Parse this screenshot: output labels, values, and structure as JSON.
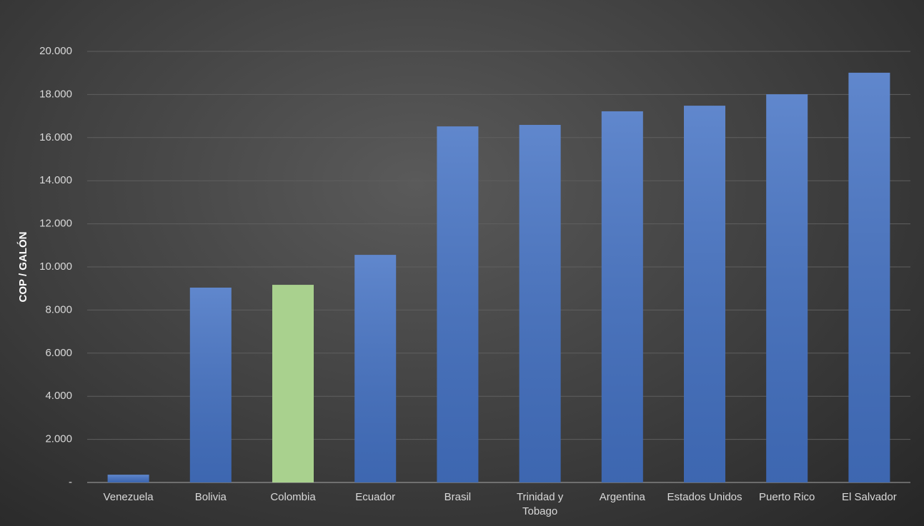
{
  "chart_data": {
    "type": "bar",
    "y_label": "COP / GALÓN",
    "categories": [
      "Venezuela",
      "Bolivia",
      "Colombia",
      "Ecuador",
      "Brasil",
      "Trinidad y Tobago",
      "Argentina",
      "Estados Unidos",
      "Puerto Rico",
      "El Salvador"
    ],
    "values": [
      360,
      9040,
      9170,
      10560,
      16520,
      16590,
      17220,
      17480,
      18010,
      19010
    ],
    "colors": [
      "#4472c4",
      "#4472c4",
      "#a9d18e",
      "#4472c4",
      "#4472c4",
      "#4472c4",
      "#4472c4",
      "#4472c4",
      "#4472c4",
      "#4472c4"
    ],
    "ylim": [
      0,
      20000
    ],
    "yticks": [
      {
        "value": 0,
        "label": "-"
      },
      {
        "value": 2000,
        "label": "2.000"
      },
      {
        "value": 4000,
        "label": "4.000"
      },
      {
        "value": 6000,
        "label": "6.000"
      },
      {
        "value": 8000,
        "label": "8.000"
      },
      {
        "value": 10000,
        "label": "10.000"
      },
      {
        "value": 12000,
        "label": "12.000"
      },
      {
        "value": 14000,
        "label": "14.000"
      },
      {
        "value": 16000,
        "label": "16.000"
      },
      {
        "value": 18000,
        "label": "18.000"
      },
      {
        "value": 20000,
        "label": "20.000"
      }
    ],
    "grid": true
  }
}
